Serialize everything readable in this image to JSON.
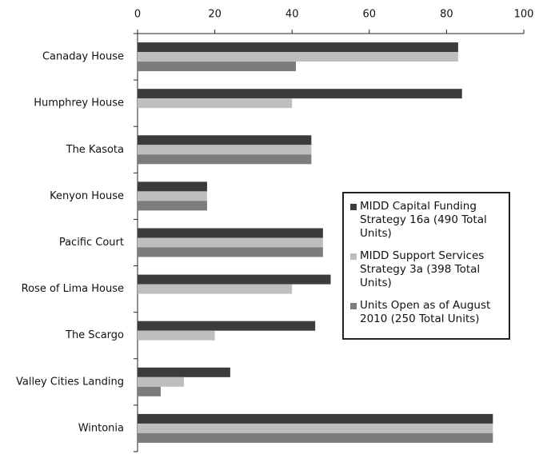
{
  "chart_data": {
    "type": "bar",
    "orientation": "horizontal",
    "categories": [
      "Canaday House",
      "Humphrey House",
      "The Kasota",
      "Kenyon House",
      "Pacific Court",
      "Rose of Lima House",
      "The Scargo",
      "Valley Cities Landing",
      "Wintonia"
    ],
    "series": [
      {
        "name": "MIDD Capital Funding Strategy 16a (490 Total Units)",
        "color": "#3c3c3c",
        "values": [
          83,
          84,
          45,
          18,
          48,
          50,
          46,
          24,
          92
        ]
      },
      {
        "name": "MIDD Support Services Strategy 3a (398 Total Units)",
        "color": "#bebebe",
        "values": [
          83,
          40,
          45,
          18,
          48,
          40,
          20,
          12,
          92
        ]
      },
      {
        "name": "Units Open as of August 2010 (250 Total Units)",
        "color": "#7c7c7c",
        "values": [
          41,
          null,
          45,
          18,
          48,
          null,
          null,
          6,
          92
        ]
      }
    ],
    "xlim": [
      0,
      100
    ],
    "xticks": [
      0,
      20,
      40,
      60,
      80,
      100
    ],
    "grid": false,
    "legend": "right"
  }
}
